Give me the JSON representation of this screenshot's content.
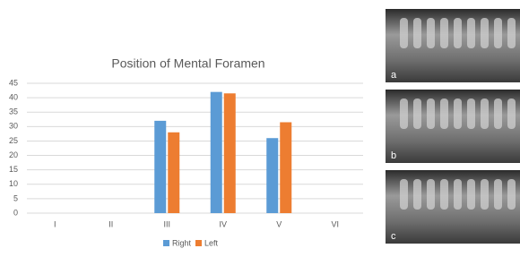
{
  "chart_data": {
    "type": "bar",
    "title": "Position of Mental Foramen",
    "categories": [
      "I",
      "II",
      "III",
      "IV",
      "V",
      "VI"
    ],
    "series": [
      {
        "name": "Right",
        "color": "#5b9bd5",
        "values": [
          0,
          0,
          32,
          42,
          26,
          0
        ]
      },
      {
        "name": "Left",
        "color": "#ed7d31",
        "values": [
          0,
          0,
          28,
          41.5,
          31.5,
          0
        ]
      }
    ],
    "ylim": [
      0,
      45
    ],
    "yticks": [
      0,
      5,
      10,
      15,
      20,
      25,
      30,
      35,
      40,
      45
    ],
    "grid": true,
    "legend": "bottom"
  },
  "images": [
    {
      "label": "a"
    },
    {
      "label": "b"
    },
    {
      "label": "c"
    }
  ]
}
